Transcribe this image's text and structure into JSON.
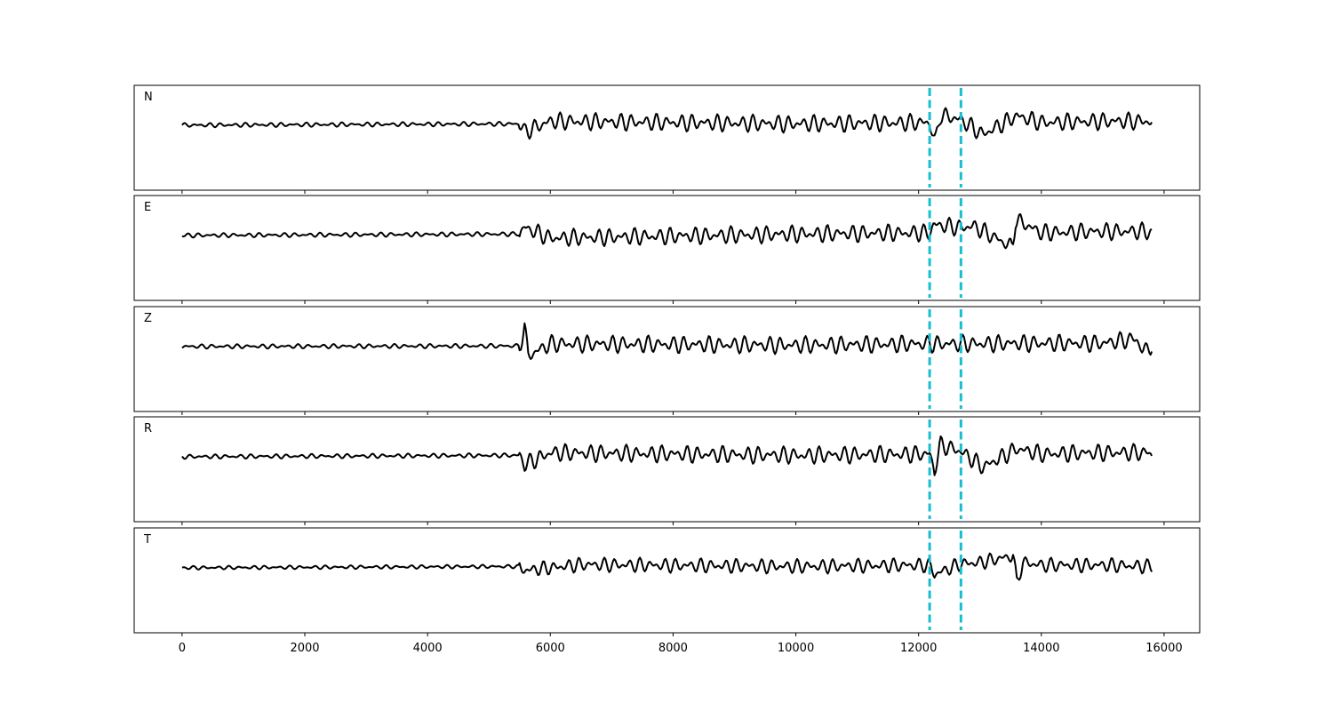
{
  "chart_data": {
    "type": "line",
    "title": "",
    "xlabel": "",
    "ylabel": "",
    "xlim": [
      -780,
      16580
    ],
    "x_ticks": [
      0,
      2000,
      4000,
      6000,
      8000,
      10000,
      12000,
      14000,
      16000
    ],
    "x_tick_labels": [
      "0",
      "2000",
      "4000",
      "6000",
      "8000",
      "10000",
      "12000",
      "14000",
      "16000"
    ],
    "grid": false,
    "trace_color": "#000000",
    "pick_color": "#17becf",
    "picks": [
      12180,
      12690
    ],
    "series": [
      {
        "name": "N",
        "x": [
          0,
          5500,
          5580,
          6000,
          10000,
          12180,
          12270,
          12350,
          12690,
          13050,
          13600,
          14000,
          15000,
          15750,
          15800
        ],
        "y": [
          0,
          0.05,
          -0.25,
          0.15,
          0.05,
          0.1,
          -0.7,
          0.4,
          0.2,
          -0.35,
          0.35,
          0.1,
          0.15,
          0.15,
          0.05
        ],
        "noise": 0.12
      },
      {
        "name": "E",
        "x": [
          0,
          5500,
          5580,
          6000,
          10000,
          12180,
          12250,
          12690,
          12900,
          13530,
          13580,
          14000,
          15000,
          15750,
          15800
        ],
        "y": [
          0,
          0.05,
          0.3,
          -0.1,
          0.05,
          0.1,
          0.4,
          0.3,
          0.35,
          -0.45,
          0.6,
          0.1,
          0.15,
          0.15,
          0.05
        ],
        "noise": 0.12
      },
      {
        "name": "Z",
        "x": [
          0,
          5500,
          5580,
          5640,
          6000,
          10000,
          12180,
          12690,
          14000,
          15000,
          15550,
          15650,
          15800
        ],
        "y": [
          0,
          0.02,
          0.75,
          -0.35,
          0.1,
          0.05,
          0.1,
          0.1,
          0.12,
          0.12,
          0.3,
          -0.2,
          0.05
        ],
        "noise": 0.12
      },
      {
        "name": "R",
        "x": [
          0,
          5500,
          5580,
          6000,
          10000,
          12180,
          12260,
          12350,
          12690,
          13050,
          13600,
          14000,
          15000,
          15750,
          15800
        ],
        "y": [
          0,
          0.05,
          -0.3,
          0.15,
          0.05,
          0.1,
          -0.55,
          0.45,
          0.2,
          -0.4,
          0.3,
          0.1,
          0.15,
          0.15,
          0.05
        ],
        "noise": 0.12
      },
      {
        "name": "T",
        "x": [
          0,
          5500,
          5580,
          6500,
          10000,
          12180,
          12260,
          12690,
          13000,
          13540,
          13600,
          13700,
          14000,
          15000,
          15800
        ],
        "y": [
          0,
          0.05,
          -0.1,
          0.12,
          0.05,
          0.1,
          -0.25,
          0.15,
          0.2,
          0.45,
          -0.55,
          0.2,
          0.1,
          0.1,
          0.05
        ],
        "noise": 0.1
      }
    ]
  }
}
